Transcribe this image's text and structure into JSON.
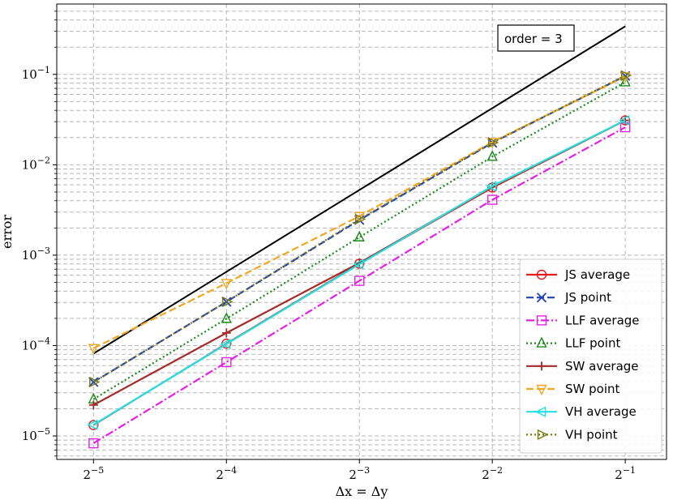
{
  "chart_data": {
    "type": "line",
    "xscale": "log2",
    "yscale": "log10",
    "xlabel": "Δx = Δy",
    "ylabel": "error",
    "x": [
      0.03125,
      0.0625,
      0.125,
      0.25,
      0.5
    ],
    "x_tick_labels": [
      "2−5",
      "2−4",
      "2−3",
      "2−2",
      "2−1"
    ],
    "x_tick_base": "2",
    "x_tick_exponents": [
      "−5",
      "−4",
      "−3",
      "−2",
      "−1"
    ],
    "y_tick_base": "10",
    "y_tick_exponents": [
      "−5",
      "−4",
      "−3",
      "−2",
      "−1"
    ],
    "y_ticks": [
      1e-05,
      0.0001,
      0.001,
      0.01,
      0.1
    ],
    "xlim": [
      0.0258,
      0.62
    ],
    "ylim": [
      5.5e-06,
      0.6
    ],
    "grid": true,
    "legend_position": "lower right",
    "reference_line": {
      "x": [
        0.03125,
        0.5
      ],
      "y": [
        8.15e-05,
        0.34
      ],
      "color": "#000000",
      "annotation": "order = 3"
    },
    "series": [
      {
        "name": "JS average",
        "values": [
          1.32e-05,
          0.000105,
          0.000805,
          0.0056,
          0.031
        ],
        "color": "#e41a1c",
        "dash": "",
        "marker": "circle"
      },
      {
        "name": "JS point",
        "values": [
          3.95e-05,
          0.000305,
          0.00245,
          0.0175,
          0.096
        ],
        "color": "#1f3fbf",
        "dash": "9,4",
        "marker": "x"
      },
      {
        "name": "LLF average",
        "values": [
          8.3e-06,
          6.55e-05,
          0.00052,
          0.0041,
          0.026
        ],
        "color": "#e61fe6",
        "dash": "10,3,2,3",
        "marker": "square"
      },
      {
        "name": "LLF point",
        "values": [
          2.55e-05,
          0.000198,
          0.00158,
          0.0123,
          0.082
        ],
        "color": "#1a8a1a",
        "dash": "2,3",
        "marker": "triangle-up"
      },
      {
        "name": "SW average",
        "values": [
          2.2e-05,
          0.000138,
          0.00082,
          0.0057,
          0.031
        ],
        "color": "#a52a2a",
        "dash": "",
        "marker": "plus"
      },
      {
        "name": "SW point",
        "values": [
          9.35e-05,
          0.00049,
          0.0027,
          0.0178,
          0.095
        ],
        "color": "#f0a820",
        "dash": "9,4",
        "marker": "triangle-down"
      },
      {
        "name": "VH average",
        "values": [
          1.33e-05,
          0.000104,
          0.000795,
          0.0058,
          0.031
        ],
        "color": "#22e0e0",
        "dash": "",
        "marker": "triangle-left"
      },
      {
        "name": "VH point",
        "values": [
          3.95e-05,
          0.000305,
          0.0025,
          0.0176,
          0.097
        ],
        "color": "#7a7a10",
        "dash": "2,3",
        "marker": "triangle-right"
      }
    ]
  }
}
